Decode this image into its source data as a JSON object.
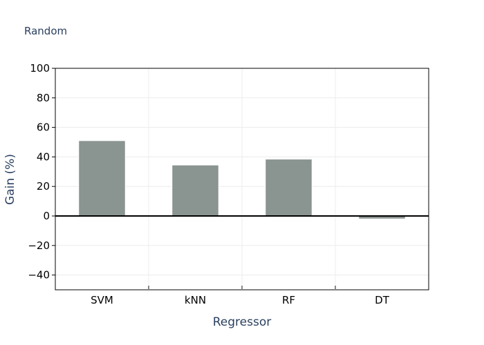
{
  "chart_data": {
    "type": "bar",
    "title": "Random",
    "xlabel": "Regressor",
    "ylabel": "Gain (%)",
    "categories": [
      "SVM",
      "kNN",
      "RF",
      "DT"
    ],
    "values": [
      51,
      34.5,
      38.5,
      -2
    ],
    "ylim": [
      -50,
      100
    ],
    "yticks": [
      -40,
      -20,
      0,
      20,
      40,
      60,
      80,
      100
    ],
    "ytick_labels": [
      "−40",
      "−20",
      "0",
      "20",
      "40",
      "60",
      "80",
      "100"
    ],
    "grid": true,
    "bar_color": "#8a9490"
  }
}
